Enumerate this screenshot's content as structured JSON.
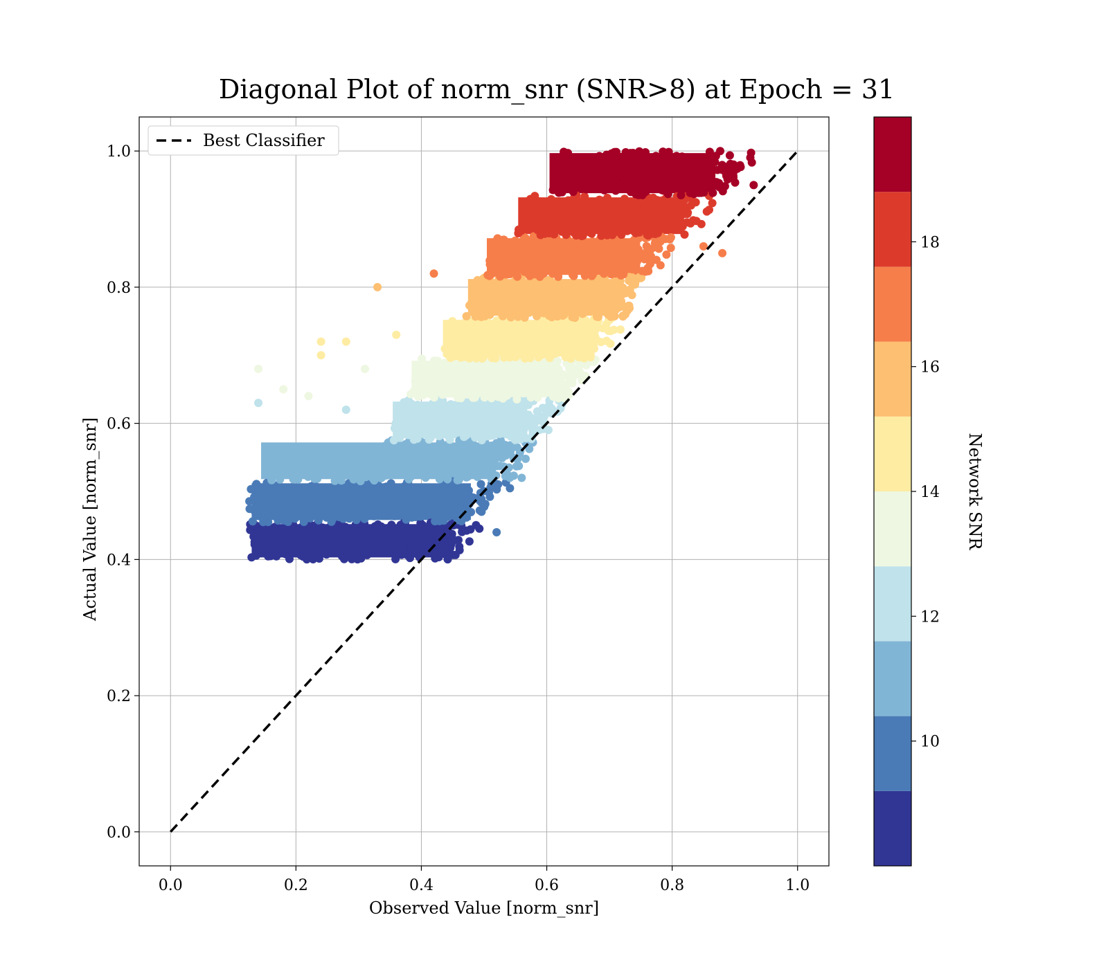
{
  "chart_data": {
    "type": "scatter",
    "title": "Diagonal Plot of norm_snr (SNR>8) at Epoch = 31",
    "xlabel": "Observed Value [norm_snr]",
    "ylabel": "Actual Value [norm_snr]",
    "xlim": [
      -0.05,
      1.05
    ],
    "ylim": [
      -0.05,
      1.05
    ],
    "xticks": [
      "0.0",
      "0.2",
      "0.4",
      "0.6",
      "0.8",
      "1.0"
    ],
    "yticks": [
      "0.0",
      "0.2",
      "0.4",
      "0.6",
      "0.8",
      "1.0"
    ],
    "grid": true,
    "legend": {
      "placement": "upper-left",
      "entries": [
        "Best Classifier"
      ]
    },
    "reference_line": {
      "name": "Best Classifier",
      "style": "dashed",
      "color": "#000000",
      "x": [
        0,
        1
      ],
      "y": [
        0,
        1
      ]
    },
    "colorbar": {
      "label": "Network SNR",
      "range": [
        8,
        20
      ],
      "ticks": [
        "10",
        "12",
        "14",
        "16",
        "18"
      ],
      "bands": [
        {
          "from": 8,
          "to": 9.2,
          "color": "#313695"
        },
        {
          "from": 9.2,
          "to": 10.4,
          "color": "#4a7bb7"
        },
        {
          "from": 10.4,
          "to": 11.6,
          "color": "#81b5d6"
        },
        {
          "from": 11.6,
          "to": 12.8,
          "color": "#bfe2eb"
        },
        {
          "from": 12.8,
          "to": 14,
          "color": "#eef7e1"
        },
        {
          "from": 14,
          "to": 15.2,
          "color": "#feeca3"
        },
        {
          "from": 15.2,
          "to": 16.4,
          "color": "#fdbf71"
        },
        {
          "from": 16.4,
          "to": 17.6,
          "color": "#f67e4b"
        },
        {
          "from": 17.6,
          "to": 18.8,
          "color": "#dc3b2c"
        },
        {
          "from": 18.8,
          "to": 20,
          "color": "#a50026"
        }
      ]
    },
    "scatter_bands": [
      {
        "snr": 8.6,
        "color": "#313695",
        "ymin": 0.4,
        "ymax": 0.455,
        "xmin_low": 0.125,
        "xmin_high": 0.125,
        "xmax_low": 0.46,
        "xmax_high": 0.49
      },
      {
        "snr": 9.8,
        "color": "#4a7bb7",
        "ymin": 0.455,
        "ymax": 0.515,
        "xmin_low": 0.125,
        "xmin_high": 0.125,
        "xmax_low": 0.49,
        "xmax_high": 0.54
      },
      {
        "snr": 11.0,
        "color": "#81b5d6",
        "ymin": 0.515,
        "ymax": 0.575,
        "xmin_low": 0.14,
        "xmin_high": 0.35,
        "xmax_low": 0.53,
        "xmax_high": 0.585
      },
      {
        "snr": 12.2,
        "color": "#bfe2eb",
        "ymin": 0.575,
        "ymax": 0.635,
        "xmin_low": 0.35,
        "xmin_high": 0.37,
        "xmax_low": 0.58,
        "xmax_high": 0.625
      },
      {
        "snr": 13.4,
        "color": "#eef7e1",
        "ymin": 0.635,
        "ymax": 0.695,
        "xmin_low": 0.38,
        "xmin_high": 0.4,
        "xmax_low": 0.63,
        "xmax_high": 0.68
      },
      {
        "snr": 14.6,
        "color": "#feeca3",
        "ymin": 0.695,
        "ymax": 0.755,
        "xmin_low": 0.43,
        "xmin_high": 0.45,
        "xmax_low": 0.68,
        "xmax_high": 0.72
      },
      {
        "snr": 15.8,
        "color": "#fdbf71",
        "ymin": 0.755,
        "ymax": 0.815,
        "xmin_low": 0.47,
        "xmin_high": 0.49,
        "xmax_low": 0.72,
        "xmax_high": 0.76
      },
      {
        "snr": 17.0,
        "color": "#f67e4b",
        "ymin": 0.815,
        "ymax": 0.875,
        "xmin_low": 0.5,
        "xmin_high": 0.52,
        "xmax_low": 0.76,
        "xmax_high": 0.8
      },
      {
        "snr": 18.2,
        "color": "#dc3b2c",
        "ymin": 0.875,
        "ymax": 0.935,
        "xmin_low": 0.55,
        "xmin_high": 0.57,
        "xmax_low": 0.83,
        "xmax_high": 0.86
      },
      {
        "snr": 19.4,
        "color": "#a50026",
        "ymin": 0.935,
        "ymax": 1.0,
        "xmin_low": 0.6,
        "xmin_high": 0.62,
        "xmax_low": 0.88,
        "xmax_high": 0.93
      }
    ],
    "outliers": [
      {
        "x": 0.33,
        "y": 0.8,
        "snr": 15.8
      },
      {
        "x": 0.24,
        "y": 0.72,
        "snr": 14.6
      },
      {
        "x": 0.28,
        "y": 0.72,
        "snr": 14.6
      },
      {
        "x": 0.24,
        "y": 0.7,
        "snr": 14.6
      },
      {
        "x": 0.14,
        "y": 0.68,
        "snr": 13.4
      },
      {
        "x": 0.22,
        "y": 0.64,
        "snr": 13.4
      },
      {
        "x": 0.18,
        "y": 0.65,
        "snr": 13.4
      },
      {
        "x": 0.14,
        "y": 0.63,
        "snr": 12.2
      },
      {
        "x": 0.42,
        "y": 0.82,
        "snr": 17.0
      },
      {
        "x": 0.36,
        "y": 0.73,
        "snr": 14.6
      },
      {
        "x": 0.85,
        "y": 0.86,
        "snr": 17.0
      },
      {
        "x": 0.88,
        "y": 0.85,
        "snr": 17.0
      },
      {
        "x": 0.93,
        "y": 0.95,
        "snr": 19.4
      },
      {
        "x": 0.59,
        "y": 0.61,
        "snr": 12.2
      },
      {
        "x": 0.52,
        "y": 0.44,
        "snr": 9.8
      },
      {
        "x": 0.56,
        "y": 0.52,
        "snr": 11.0
      },
      {
        "x": 0.28,
        "y": 0.62,
        "snr": 12.2
      },
      {
        "x": 0.31,
        "y": 0.68,
        "snr": 13.4
      }
    ]
  }
}
